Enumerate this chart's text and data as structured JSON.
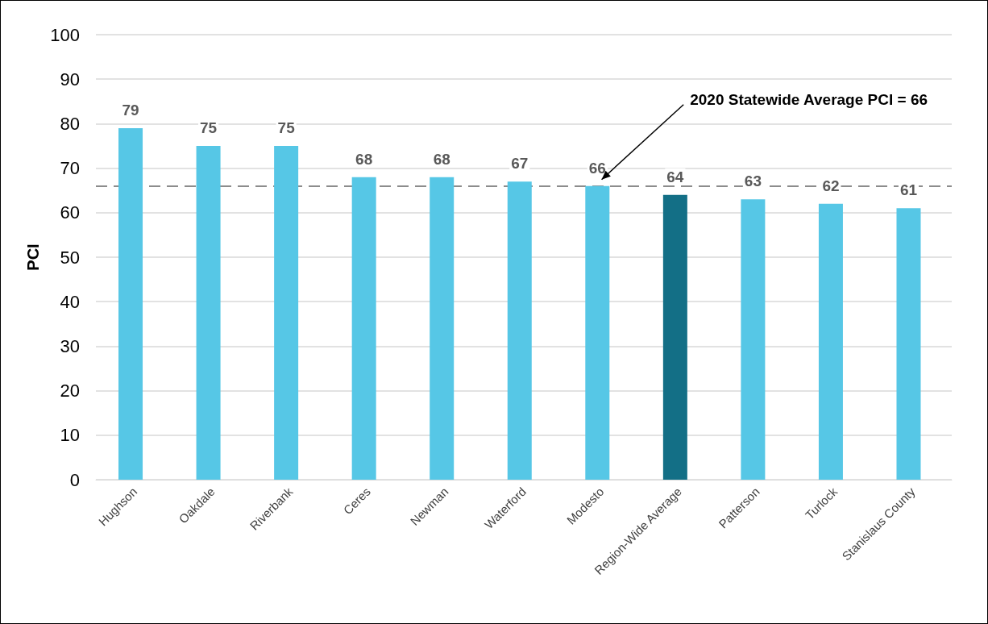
{
  "chart_data": {
    "type": "bar",
    "ylabel": "PCI",
    "categories": [
      "Hughson",
      "Oakdale",
      "Riverbank",
      "Ceres",
      "Newman",
      "Waterford",
      "Modesto",
      "Region-Wide Average",
      "Patterson",
      "Turlock",
      "Stanislaus County"
    ],
    "values": [
      79,
      75,
      75,
      68,
      68,
      67,
      66,
      64,
      63,
      62,
      61
    ],
    "colors": [
      "#56c7e6",
      "#56c7e6",
      "#56c7e6",
      "#56c7e6",
      "#56c7e6",
      "#56c7e6",
      "#56c7e6",
      "#136f86",
      "#56c7e6",
      "#56c7e6",
      "#56c7e6"
    ],
    "ylim": [
      0,
      100
    ],
    "yticks": [
      0,
      10,
      20,
      30,
      40,
      50,
      60,
      70,
      80,
      90,
      100
    ],
    "grid": "y",
    "data_labels": true,
    "ref_lines": [
      {
        "axis": "y",
        "value": 66,
        "label": "2020 Statewide Average PCI = 66",
        "color": "#8c8c8c",
        "line_style": "dashed"
      }
    ]
  }
}
